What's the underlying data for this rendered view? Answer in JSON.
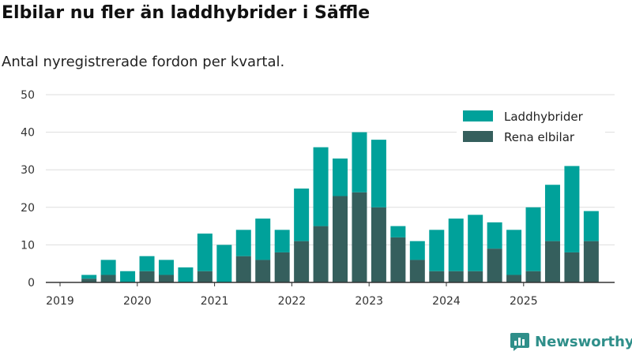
{
  "title": "Elbilar nu fler än laddhybrider i Säffle",
  "subtitle": "Antal nyregistrerade fordon per kvartal.",
  "brand": "Newsworthy",
  "colors": {
    "laddhybrider": "#00a19a",
    "elbilar": "#355f5d",
    "grid": "#dddddd",
    "axis": "#333333"
  },
  "chart_data": {
    "type": "bar",
    "stacked": true,
    "categories": [
      "2019 Q1",
      "2019 Q2",
      "2019 Q3",
      "2019 Q4",
      "2020 Q1",
      "2020 Q2",
      "2020 Q3",
      "2020 Q4",
      "2021 Q1",
      "2021 Q2",
      "2021 Q3",
      "2021 Q4",
      "2022 Q1",
      "2022 Q2",
      "2022 Q3",
      "2022 Q4",
      "2023 Q1",
      "2023 Q2",
      "2023 Q3",
      "2023 Q4",
      "2024 Q1",
      "2024 Q2",
      "2024 Q3",
      "2024 Q4",
      "2025 Q1",
      "2025 Q2",
      "2025 Q3",
      "2025 Q4"
    ],
    "series": [
      {
        "name": "Rena elbilar",
        "values": [
          0,
          1,
          2,
          0,
          3,
          2,
          0,
          3,
          0,
          7,
          6,
          8,
          11,
          15,
          23,
          24,
          20,
          12,
          6,
          3,
          3,
          3,
          9,
          2,
          3,
          11,
          8,
          11
        ]
      },
      {
        "name": "Laddhybrider",
        "values": [
          0,
          1,
          4,
          3,
          4,
          4,
          4,
          10,
          10,
          7,
          11,
          6,
          14,
          21,
          10,
          16,
          18,
          3,
          5,
          11,
          14,
          15,
          7,
          12,
          17,
          15,
          23,
          8
        ]
      }
    ],
    "x_tick_labels": [
      "2019",
      "2020",
      "2021",
      "2022",
      "2023",
      "2024",
      "2025"
    ],
    "y_ticks": [
      0,
      10,
      20,
      30,
      40,
      50
    ],
    "ylim": [
      0,
      50
    ],
    "legend": [
      "Laddhybrider",
      "Rena elbilar"
    ],
    "legend_position": "top-right"
  }
}
